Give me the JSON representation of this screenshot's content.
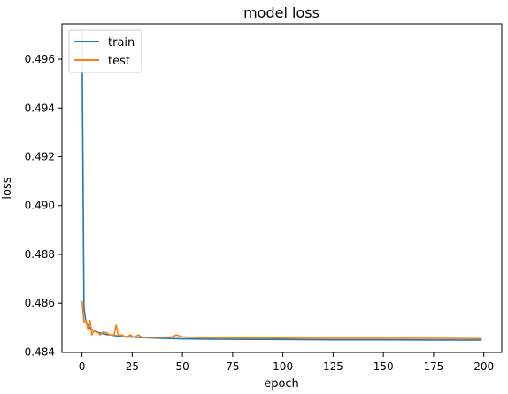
{
  "chart_data": {
    "type": "line",
    "title": "model loss",
    "xlabel": "epoch",
    "ylabel": "loss",
    "xlim": [
      -9.95,
      208.95
    ],
    "ylim": [
      0.48398,
      0.49745
    ],
    "xticks": [
      0,
      25,
      50,
      75,
      100,
      125,
      150,
      175,
      200
    ],
    "xtick_labels": [
      "0",
      "25",
      "50",
      "75",
      "100",
      "125",
      "150",
      "175",
      "200"
    ],
    "yticks": [
      0.484,
      0.486,
      0.488,
      0.49,
      0.492,
      0.494,
      0.496
    ],
    "ytick_labels": [
      "0.484",
      "0.486",
      "0.488",
      "0.490",
      "0.492",
      "0.494",
      "0.496"
    ],
    "grid": false,
    "legend": {
      "position": "top-left",
      "entries": [
        "train",
        "test"
      ]
    },
    "series": [
      {
        "name": "train",
        "color": "#1f77b4",
        "x": [
          0,
          1,
          2,
          3,
          4,
          5,
          6,
          8,
          10,
          12,
          14,
          16,
          18,
          20,
          25,
          30,
          40,
          50,
          60,
          75,
          100,
          125,
          150,
          175,
          199
        ],
        "values": [
          0.4972,
          0.4858,
          0.4852,
          0.4851,
          0.48498,
          0.48492,
          0.48488,
          0.48481,
          0.48476,
          0.48472,
          0.4847,
          0.48468,
          0.48465,
          0.48463,
          0.48461,
          0.48459,
          0.48456,
          0.48454,
          0.48453,
          0.48452,
          0.48451,
          0.4845,
          0.4845,
          0.48449,
          0.48449
        ]
      },
      {
        "name": "test",
        "color": "#ff7f0e",
        "x": [
          0,
          1,
          2,
          3,
          4,
          5,
          6,
          7,
          8,
          9,
          10,
          12,
          14,
          16,
          17,
          18,
          20,
          22,
          24,
          26,
          28,
          30,
          35,
          40,
          45,
          47,
          50,
          55,
          60,
          65,
          70,
          75,
          80,
          90,
          100,
          110,
          125,
          150,
          175,
          199
        ],
        "values": [
          0.4861,
          0.4852,
          0.4853,
          0.4849,
          0.4853,
          0.4847,
          0.4849,
          0.4848,
          0.4848,
          0.4847,
          0.4848,
          0.4848,
          0.4847,
          0.4847,
          0.4851,
          0.4847,
          0.4847,
          0.4846,
          0.4847,
          0.4846,
          0.4847,
          0.4846,
          0.4846,
          0.4846,
          0.48462,
          0.4847,
          0.48462,
          0.4846,
          0.48458,
          0.48459,
          0.48457,
          0.48458,
          0.48457,
          0.48457,
          0.48457,
          0.48456,
          0.48456,
          0.48456,
          0.48456,
          0.48455
        ]
      }
    ]
  }
}
